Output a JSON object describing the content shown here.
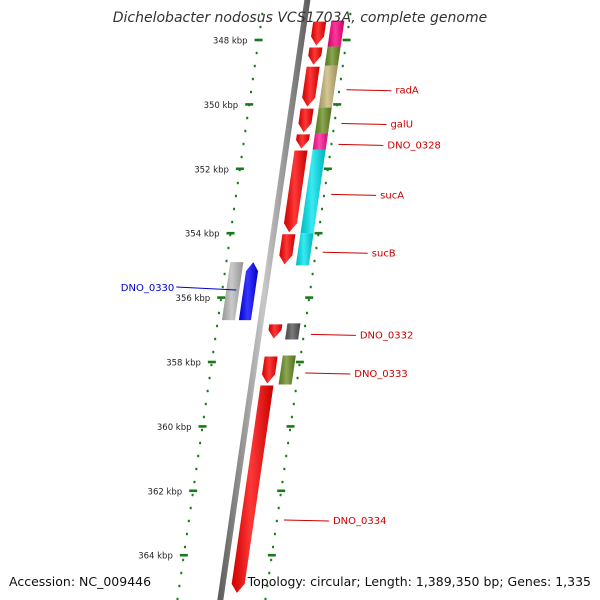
{
  "title": "Dichelobacter nodosus VCS1703A, complete genome",
  "footer": {
    "accession": "Accession: NC_009446",
    "info": "Topology: circular; Length: 1,389,350 bp; Genes: 1,335"
  },
  "colors": {
    "ring": "#888888",
    "tick": "#1a7a1a",
    "forward_label": "#cc0000",
    "reverse_label": "#0000cc",
    "cds_forward": "#ff0000",
    "cds_reverse": "#0000ff"
  },
  "scale": {
    "unit": "kbp",
    "major_ticks": [
      {
        "kbp": 348,
        "label": "348 kbp"
      },
      {
        "kbp": 350,
        "label": "350 kbp"
      },
      {
        "kbp": 352,
        "label": "352 kbp"
      },
      {
        "kbp": 354,
        "label": "354 kbp"
      },
      {
        "kbp": 356,
        "label": "356 kbp"
      },
      {
        "kbp": 358,
        "label": "358 kbp"
      },
      {
        "kbp": 360,
        "label": "360 kbp"
      },
      {
        "kbp": 362,
        "label": "362 kbp"
      },
      {
        "kbp": 364,
        "label": "364 kbp"
      }
    ]
  },
  "features": [
    {
      "name": "",
      "strand": "forward",
      "start_kbp": 347.4,
      "end_kbp": 348.2,
      "cog_color": "#ff0080",
      "label": ""
    },
    {
      "name": "",
      "strand": "forward",
      "start_kbp": 348.2,
      "end_kbp": 348.8,
      "cog_color": "#6b8e23",
      "label": ""
    },
    {
      "name": "radA",
      "strand": "forward",
      "start_kbp": 348.8,
      "end_kbp": 350.1,
      "cog_color": "#c8b878",
      "label": "radA"
    },
    {
      "name": "galU",
      "strand": "forward",
      "start_kbp": 350.1,
      "end_kbp": 350.9,
      "cog_color": "#6b8e23",
      "label": "galU"
    },
    {
      "name": "DNO_0328",
      "strand": "forward",
      "start_kbp": 350.9,
      "end_kbp": 351.4,
      "cog_color": "#ff1493",
      "label": "DNO_0328"
    },
    {
      "name": "sucA",
      "strand": "forward",
      "start_kbp": 351.4,
      "end_kbp": 354.0,
      "cog_color": "#00e5ee",
      "label": "sucA"
    },
    {
      "name": "sucB",
      "strand": "forward",
      "start_kbp": 354.0,
      "end_kbp": 355.0,
      "cog_color": "#00e5ee",
      "label": "sucB"
    },
    {
      "name": "DNO_0330",
      "strand": "reverse",
      "start_kbp": 354.9,
      "end_kbp": 356.7,
      "cog_color": "#bbbbbb",
      "label": "DNO_0330"
    },
    {
      "name": "DNO_0332",
      "strand": "forward",
      "start_kbp": 356.8,
      "end_kbp": 357.3,
      "cog_color": "#555555",
      "label": "DNO_0332"
    },
    {
      "name": "DNO_0333",
      "strand": "forward",
      "start_kbp": 357.8,
      "end_kbp": 358.7,
      "cog_color": "#6b8e23",
      "label": "DNO_0333"
    },
    {
      "name": "DNO_0334",
      "strand": "forward",
      "start_kbp": 358.7,
      "end_kbp": 365.2,
      "cog_color": "",
      "label": "DNO_0334"
    }
  ]
}
